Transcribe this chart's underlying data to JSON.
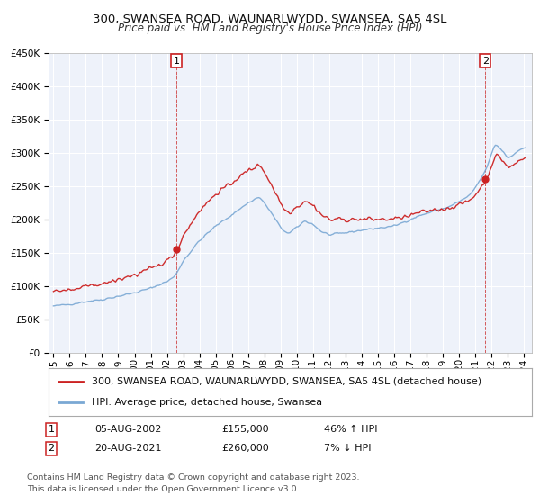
{
  "title": "300, SWANSEA ROAD, WAUNARLWYDD, SWANSEA, SA5 4SL",
  "subtitle": "Price paid vs. HM Land Registry's House Price Index (HPI)",
  "ylim": [
    0,
    450000
  ],
  "yticks": [
    0,
    50000,
    100000,
    150000,
    200000,
    250000,
    300000,
    350000,
    400000,
    450000
  ],
  "xlim_start": 1994.7,
  "xlim_end": 2024.5,
  "background_color": "#ffffff",
  "plot_bg_color": "#eef2fa",
  "grid_color": "#ffffff",
  "hpi_line_color": "#7aa8d4",
  "property_line_color": "#cc2222",
  "property_dot_color": "#cc2222",
  "vline_color": "#cc3333",
  "sale1_date": "05-AUG-2002",
  "sale1_price": 155000,
  "sale1_hpi_diff": "46% ↑ HPI",
  "sale2_date": "20-AUG-2021",
  "sale2_price": 260000,
  "sale2_hpi_diff": "7% ↓ HPI",
  "sale1_year": 2002.59,
  "sale2_year": 2021.63,
  "legend_line1": "300, SWANSEA ROAD, WAUNARLWYDD, SWANSEA, SA5 4SL (detached house)",
  "legend_line2": "HPI: Average price, detached house, Swansea",
  "footnote1": "Contains HM Land Registry data © Crown copyright and database right 2023.",
  "footnote2": "This data is licensed under the Open Government Licence v3.0.",
  "title_fontsize": 9.5,
  "subtitle_fontsize": 8.5,
  "tick_fontsize": 7.5,
  "legend_fontsize": 8.0,
  "footnote_fontsize": 6.8
}
